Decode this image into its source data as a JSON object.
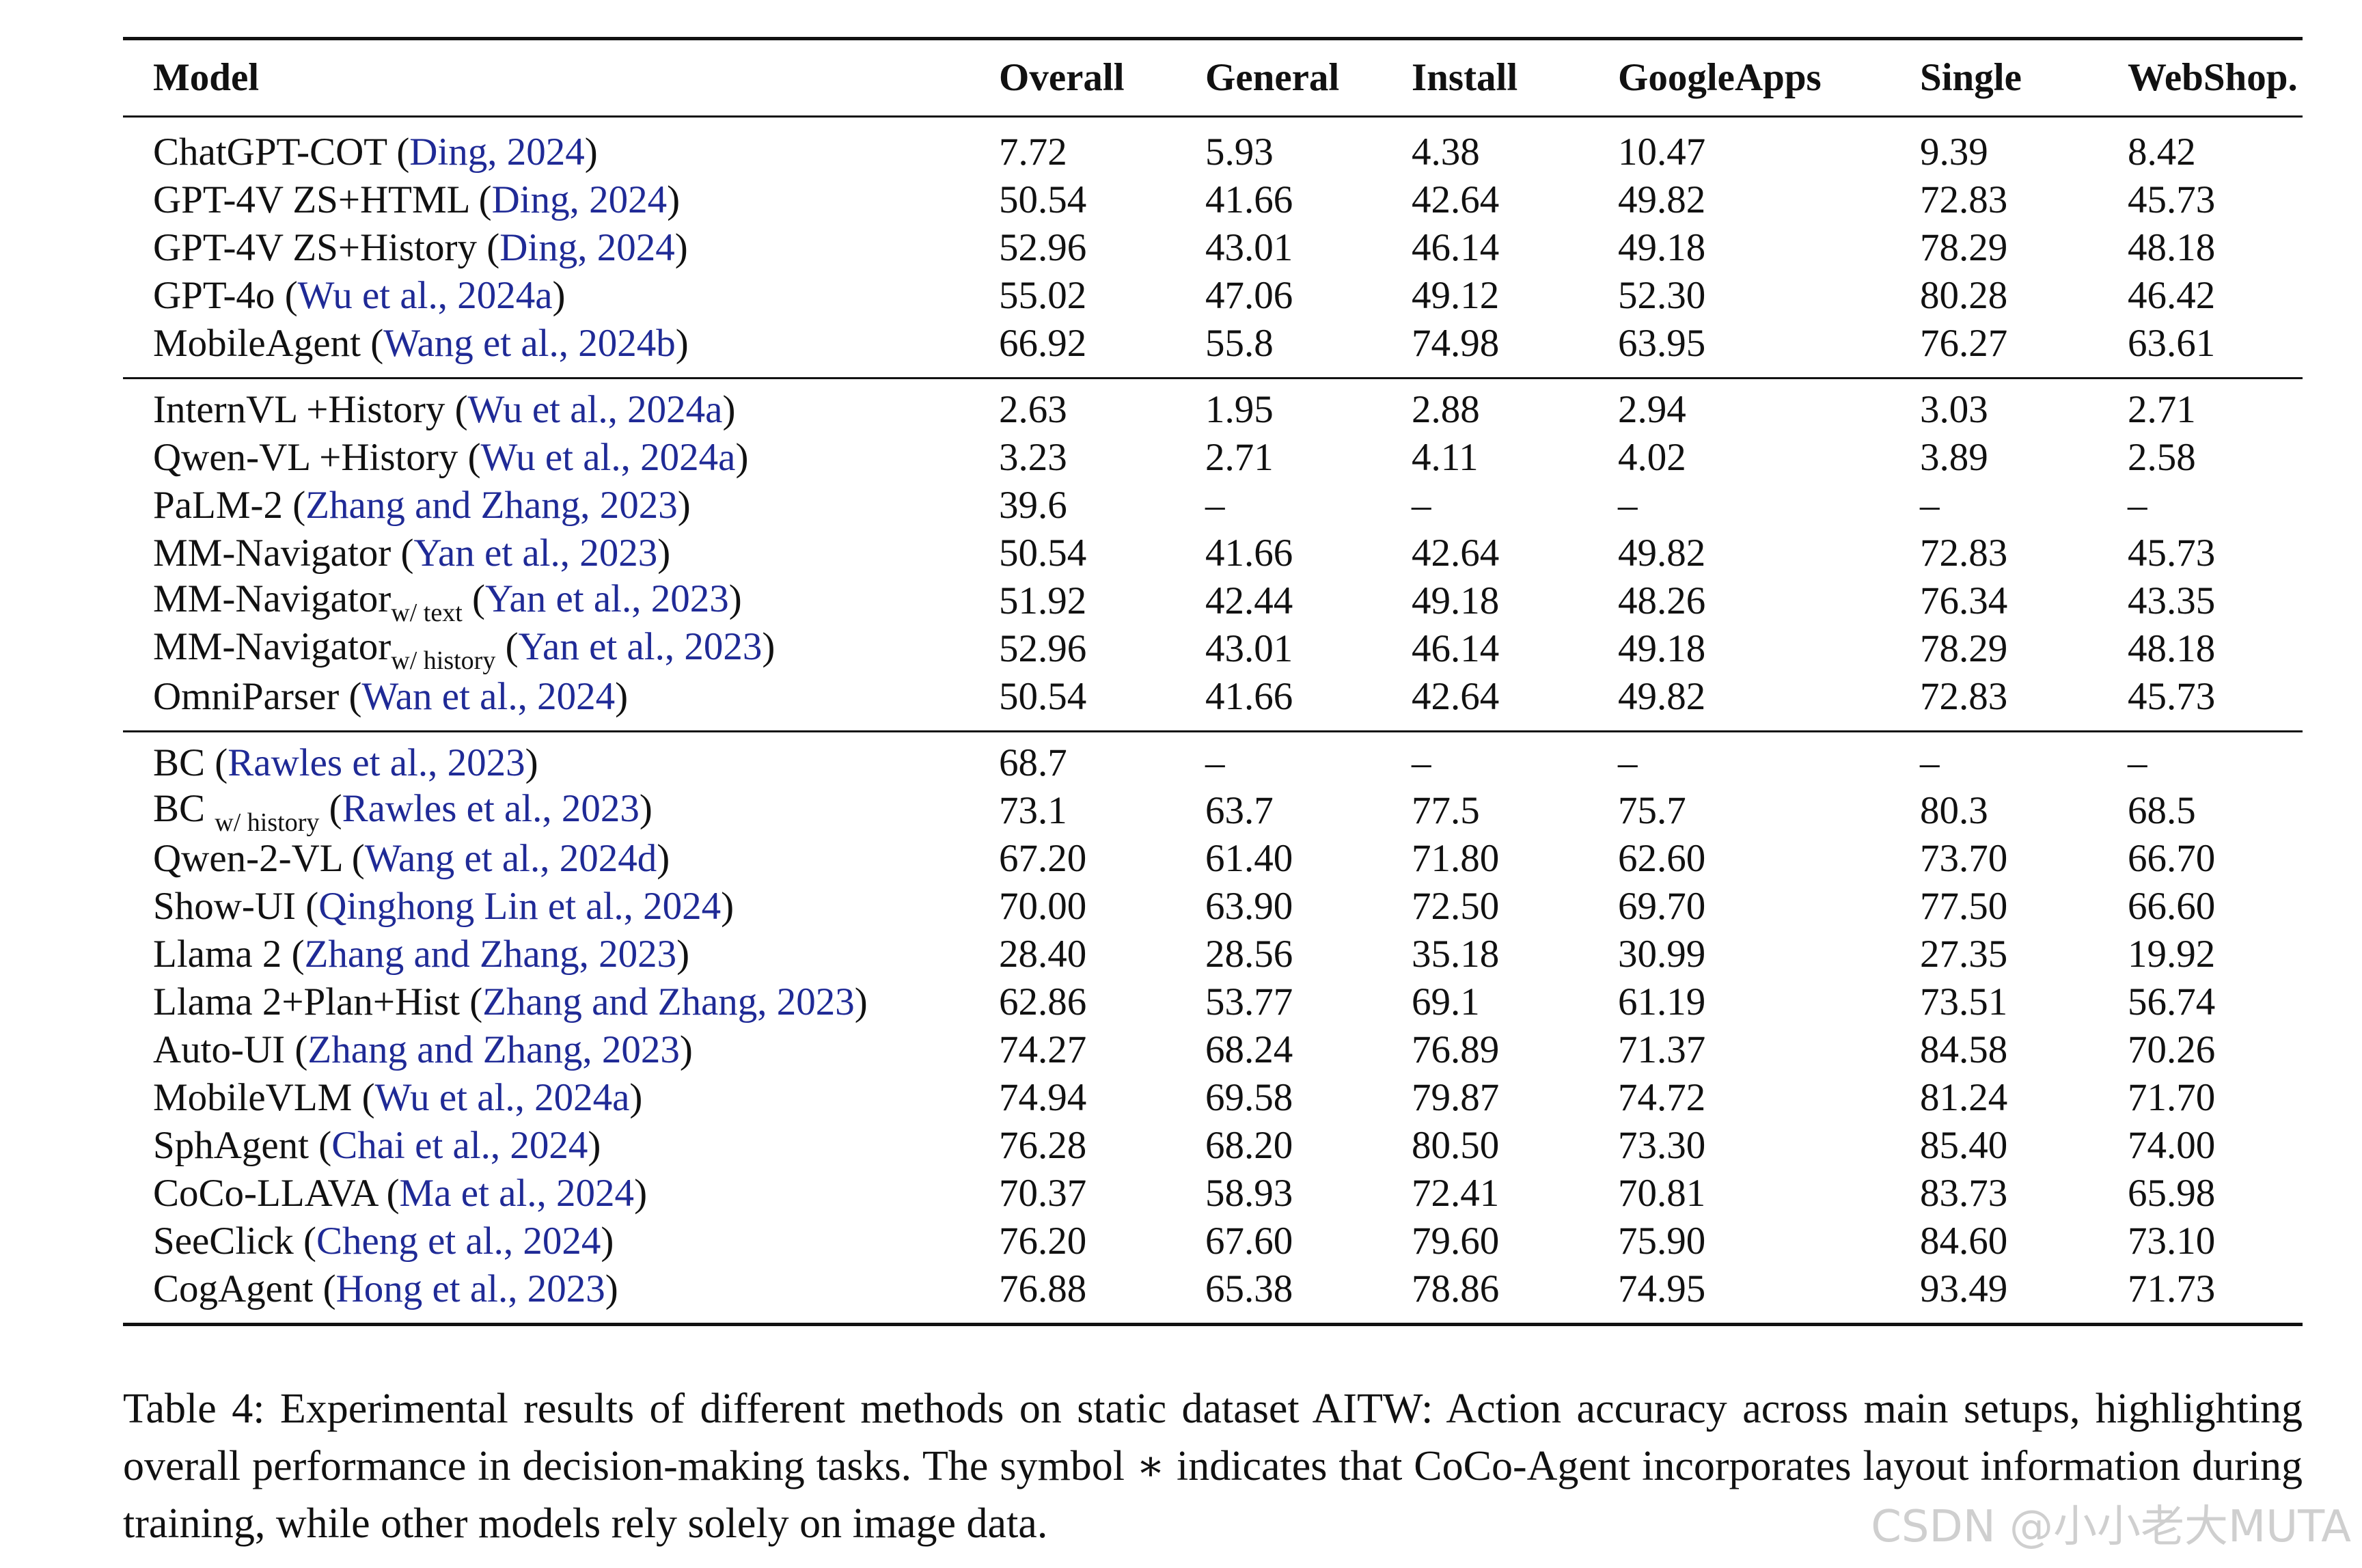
{
  "table": {
    "headers": [
      "Model",
      "Overall",
      "General",
      "Install",
      "GoogleApps",
      "Single",
      "WebShop."
    ],
    "groups": [
      [
        {
          "name": "ChatGPT-COT",
          "sub": "",
          "cite": "Ding, 2024",
          "values": [
            "7.72",
            "5.93",
            "4.38",
            "10.47",
            "9.39",
            "8.42"
          ]
        },
        {
          "name": "GPT-4V ZS+HTML",
          "sub": "",
          "cite": "Ding, 2024",
          "values": [
            "50.54",
            "41.66",
            "42.64",
            "49.82",
            "72.83",
            "45.73"
          ]
        },
        {
          "name": "GPT-4V ZS+History",
          "sub": "",
          "cite": "Ding, 2024",
          "values": [
            "52.96",
            "43.01",
            "46.14",
            "49.18",
            "78.29",
            "48.18"
          ]
        },
        {
          "name": "GPT-4o",
          "sub": "",
          "cite": "Wu et al., 2024a",
          "values": [
            "55.02",
            "47.06",
            "49.12",
            "52.30",
            "80.28",
            "46.42"
          ]
        },
        {
          "name": "MobileAgent",
          "sub": "",
          "cite": "Wang et al., 2024b",
          "values": [
            "66.92",
            "55.8",
            "74.98",
            "63.95",
            "76.27",
            "63.61"
          ]
        }
      ],
      [
        {
          "name": "InternVL +History",
          "sub": "",
          "cite": "Wu et al., 2024a",
          "values": [
            "2.63",
            "1.95",
            "2.88",
            "2.94",
            "3.03",
            "2.71"
          ]
        },
        {
          "name": "Qwen-VL +History",
          "sub": "",
          "cite": "Wu et al., 2024a",
          "values": [
            "3.23",
            "2.71",
            "4.11",
            "4.02",
            "3.89",
            "2.58"
          ]
        },
        {
          "name": "PaLM-2",
          "sub": "",
          "cite": "Zhang and Zhang, 2023",
          "values": [
            "39.6",
            "–",
            "–",
            "–",
            "–",
            "–"
          ]
        },
        {
          "name": "MM-Navigator",
          "sub": "",
          "cite": "Yan et al., 2023",
          "values": [
            "50.54",
            "41.66",
            "42.64",
            "49.82",
            "72.83",
            "45.73"
          ]
        },
        {
          "name": "MM-Navigator",
          "sub": "w/ text",
          "cite": "Yan et al., 2023",
          "values": [
            "51.92",
            "42.44",
            "49.18",
            "48.26",
            "76.34",
            "43.35"
          ]
        },
        {
          "name": "MM-Navigator",
          "sub": "w/ history",
          "cite": "Yan et al., 2023",
          "values": [
            "52.96",
            "43.01",
            "46.14",
            "49.18",
            "78.29",
            "48.18"
          ]
        },
        {
          "name": "OmniParser",
          "sub": "",
          "cite": "Wan et al., 2024",
          "values": [
            "50.54",
            "41.66",
            "42.64",
            "49.82",
            "72.83",
            "45.73"
          ]
        }
      ],
      [
        {
          "name": "BC",
          "sub": "",
          "cite": "Rawles et al., 2023",
          "values": [
            "68.7",
            "–",
            "–",
            "–",
            "–",
            "–"
          ]
        },
        {
          "name": "BC",
          "sub": "w/ history",
          "cite": "Rawles et al., 2023",
          "values": [
            "73.1",
            "63.7",
            "77.5",
            "75.7",
            "80.3",
            "68.5"
          ]
        },
        {
          "name": "Qwen-2-VL",
          "sub": "",
          "cite": "Wang et al., 2024d",
          "values": [
            "67.20",
            "61.40",
            "71.80",
            "62.60",
            "73.70",
            "66.70"
          ]
        },
        {
          "name": "Show-UI",
          "sub": "",
          "cite": "Qinghong Lin et al., 2024",
          "values": [
            "70.00",
            "63.90",
            "72.50",
            "69.70",
            "77.50",
            "66.60"
          ]
        },
        {
          "name": "Llama 2",
          "sub": "",
          "cite": "Zhang and Zhang, 2023",
          "values": [
            "28.40",
            "28.56",
            "35.18",
            "30.99",
            "27.35",
            "19.92"
          ]
        },
        {
          "name": "Llama 2+Plan+Hist",
          "sub": "",
          "cite": "Zhang and Zhang, 2023",
          "values": [
            "62.86",
            "53.77",
            "69.1",
            "61.19",
            "73.51",
            "56.74"
          ]
        },
        {
          "name": "Auto-UI",
          "sub": "",
          "cite": "Zhang and Zhang, 2023",
          "values": [
            "74.27",
            "68.24",
            "76.89",
            "71.37",
            "84.58",
            "70.26"
          ]
        },
        {
          "name": "MobileVLM",
          "sub": "",
          "cite": "Wu et al., 2024a",
          "values": [
            "74.94",
            "69.58",
            "79.87",
            "74.72",
            "81.24",
            "71.70"
          ]
        },
        {
          "name": "SphAgent",
          "sub": "",
          "cite": "Chai et al., 2024",
          "values": [
            "76.28",
            "68.20",
            "80.50",
            "73.30",
            "85.40",
            "74.00"
          ]
        },
        {
          "name": "CoCo-LLAVA",
          "sub": "",
          "cite": "Ma et al., 2024",
          "values": [
            "70.37",
            "58.93",
            "72.41",
            "70.81",
            "83.73",
            "65.98"
          ]
        },
        {
          "name": "SeeClick",
          "sub": "",
          "cite": "Cheng et al., 2024",
          "values": [
            "76.20",
            "67.60",
            "79.60",
            "75.90",
            "84.60",
            "73.10"
          ]
        },
        {
          "name": "CogAgent",
          "sub": "",
          "cite": "Hong et al., 2023",
          "values": [
            "76.88",
            "65.38",
            "78.86",
            "74.95",
            "93.49",
            "71.73"
          ]
        }
      ]
    ]
  },
  "caption": "Table 4: Experimental results of different methods on static dataset AITW: Action accuracy across main setups, highlighting overall performance in decision-making tasks. The symbol ∗ indicates that CoCo-Agent incorporates layout information during training, while other models rely solely on image data.",
  "watermark": "CSDN @小小老大MUTA"
}
